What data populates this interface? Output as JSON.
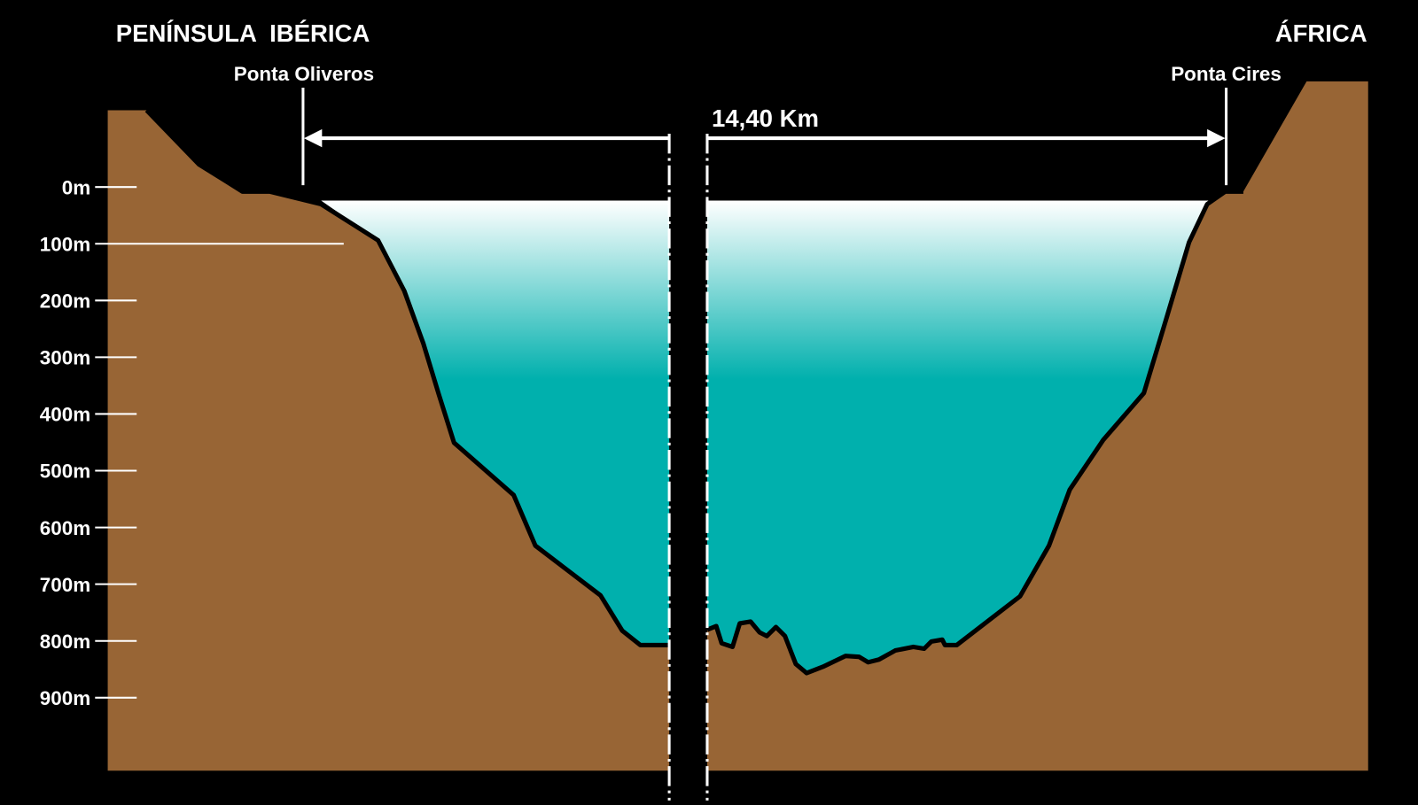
{
  "header": {
    "left_region": "PENÍNSULA  IBÉRICA",
    "right_region": "ÁFRICA"
  },
  "points": {
    "left": "Ponta Oliveros",
    "right": "Ponta Cires"
  },
  "distance": "14,40 Km",
  "depth_axis": {
    "labels": [
      "0m",
      "100m",
      "200m",
      "300m",
      "400m",
      "500m",
      "600m",
      "700m",
      "800m",
      "900m"
    ]
  }
}
